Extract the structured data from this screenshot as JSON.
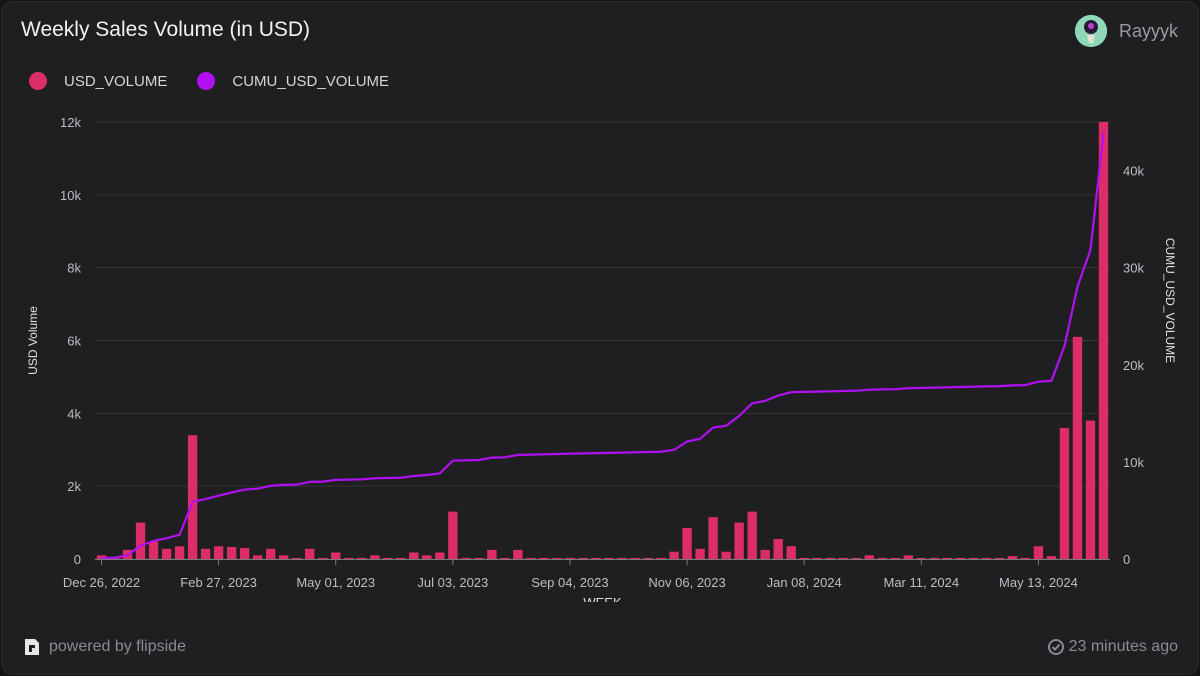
{
  "header": {
    "title": "Weekly Sales Volume (in USD)"
  },
  "user": {
    "name": "Rayyyk"
  },
  "footer": {
    "powered_by": "powered by flipside",
    "updated": "23 minutes ago"
  },
  "colors": {
    "bar": "#dd2c6a",
    "line": "#b010f2",
    "grid": "#34343a",
    "axis_text": "#bdbdc2"
  },
  "chart_data": {
    "type": "bar",
    "title": "Weekly Sales Volume (in USD)",
    "xlabel": "WEEK",
    "ylabel": "USD Volume",
    "y2label": "CUMU_USD_VOLUME",
    "ylim": [
      0,
      12000
    ],
    "y2lim": [
      0,
      45000
    ],
    "y_ticks": [
      0,
      2000,
      4000,
      6000,
      8000,
      10000,
      12000
    ],
    "y_tick_labels": [
      "0",
      "2k",
      "4k",
      "6k",
      "8k",
      "10k",
      "12k"
    ],
    "y2_ticks": [
      0,
      10000,
      20000,
      30000,
      40000
    ],
    "y2_tick_labels": [
      "0",
      "10k",
      "20k",
      "30k",
      "40k"
    ],
    "x_tick_labels": [
      "Dec 26, 2022",
      "Feb 27, 2023",
      "May 01, 2023",
      "Jul 03, 2023",
      "Sep 04, 2023",
      "Nov 06, 2023",
      "Jan 08, 2024",
      "Mar 11, 2024",
      "May 13, 2024"
    ],
    "x_tick_index": [
      0,
      9,
      18,
      27,
      36,
      45,
      54,
      63,
      72
    ],
    "legend_position": "top-left",
    "grid": true,
    "series": [
      {
        "name": "USD_VOLUME",
        "type": "bar",
        "axis": "left",
        "values": [
          100,
          30,
          250,
          1000,
          480,
          280,
          350,
          3400,
          280,
          350,
          330,
          300,
          100,
          280,
          100,
          30,
          280,
          30,
          180,
          30,
          30,
          100,
          30,
          30,
          180,
          100,
          180,
          1300,
          30,
          30,
          250,
          30,
          250,
          30,
          30,
          30,
          30,
          30,
          30,
          30,
          30,
          30,
          30,
          30,
          200,
          850,
          280,
          1150,
          200,
          1000,
          1300,
          250,
          550,
          350,
          30,
          30,
          30,
          30,
          30,
          100,
          30,
          30,
          100,
          30,
          30,
          30,
          30,
          30,
          30,
          30,
          80,
          30,
          350,
          80,
          3600,
          6100,
          3800,
          12000
        ]
      },
      {
        "name": "CUMU_USD_VOLUME",
        "type": "line",
        "axis": "right",
        "values": [
          100,
          130,
          380,
          1380,
          1860,
          2140,
          2490,
          5890,
          6170,
          6520,
          6850,
          7150,
          7250,
          7530,
          7630,
          7660,
          7940,
          7970,
          8150,
          8180,
          8210,
          8310,
          8340,
          8370,
          8550,
          8650,
          8830,
          10130,
          10160,
          10190,
          10440,
          10470,
          10720,
          10750,
          10780,
          10810,
          10840,
          10870,
          10900,
          10930,
          10960,
          10990,
          11020,
          11050,
          11250,
          12100,
          12380,
          13530,
          13730,
          14730,
          16030,
          16280,
          16830,
          17180,
          17210,
          17240,
          17270,
          17300,
          17330,
          17430,
          17460,
          17490,
          17590,
          17620,
          17650,
          17680,
          17710,
          17740,
          17770,
          17800,
          17880,
          17910,
          18260,
          18340,
          21940,
          28040,
          31840,
          43840
        ]
      }
    ]
  }
}
